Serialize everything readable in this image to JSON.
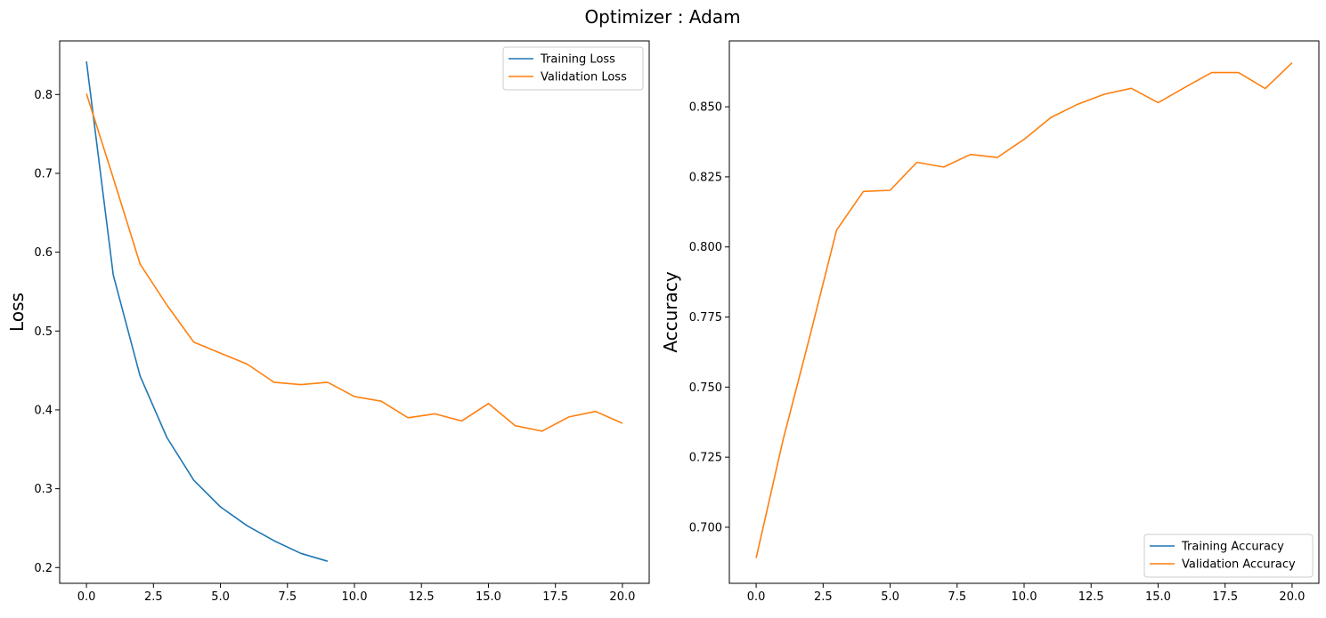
{
  "figure": {
    "suptitle": "Optimizer : Adam"
  },
  "chart_data": [
    {
      "type": "line",
      "title": "",
      "xlabel": "",
      "ylabel": "Loss",
      "xlim": [
        -1,
        21
      ],
      "ylim": [
        0.18,
        0.868
      ],
      "xticks": [
        0,
        2.5,
        5,
        7.5,
        10,
        12.5,
        15,
        17.5,
        20
      ],
      "xtick_labels": [
        "0.0",
        "2.5",
        "5.0",
        "7.5",
        "10.0",
        "12.5",
        "15.0",
        "17.5",
        "20.0"
      ],
      "yticks": [
        0.2,
        0.3,
        0.4,
        0.5,
        0.6,
        0.7,
        0.8
      ],
      "ytick_labels": [
        "0.2",
        "0.3",
        "0.4",
        "0.5",
        "0.6",
        "0.7",
        "0.8"
      ],
      "grid": false,
      "legend": "top-right",
      "series": [
        {
          "name": "Training Loss",
          "color": "#1f77b4",
          "x": [
            0,
            1,
            2,
            3,
            4,
            5,
            6,
            7,
            8,
            9
          ],
          "values": [
            0.842,
            0.571,
            0.443,
            0.365,
            0.311,
            0.277,
            0.253,
            0.234,
            0.218,
            0.208
          ]
        },
        {
          "name": "Validation Loss",
          "color": "#ff7f0e",
          "x": [
            0,
            1,
            2,
            3,
            4,
            5,
            6,
            7,
            8,
            9,
            10,
            11,
            12,
            13,
            14,
            15,
            16,
            17,
            18,
            19,
            20
          ],
          "values": [
            0.801,
            0.694,
            0.585,
            0.533,
            0.486,
            0.472,
            0.458,
            0.435,
            0.432,
            0.435,
            0.417,
            0.411,
            0.39,
            0.395,
            0.386,
            0.408,
            0.38,
            0.373,
            0.391,
            0.398,
            0.383
          ]
        }
      ]
    },
    {
      "type": "line",
      "title": "",
      "xlabel": "",
      "ylabel": "Accuracy",
      "xlim": [
        -1,
        21
      ],
      "ylim": [
        0.68,
        0.8735
      ],
      "xticks": [
        0,
        2.5,
        5,
        7.5,
        10,
        12.5,
        15,
        17.5,
        20
      ],
      "xtick_labels": [
        "0.0",
        "2.5",
        "5.0",
        "7.5",
        "10.0",
        "12.5",
        "15.0",
        "17.5",
        "20.0"
      ],
      "yticks": [
        0.7,
        0.725,
        0.75,
        0.775,
        0.8,
        0.825,
        0.85
      ],
      "ytick_labels": [
        "0.700",
        "0.725",
        "0.750",
        "0.775",
        "0.800",
        "0.825",
        "0.850"
      ],
      "grid": false,
      "legend": "bottom-right",
      "series": [
        {
          "name": "Training Accuracy",
          "color": "#1f77b4",
          "x": [],
          "values": []
        },
        {
          "name": "Validation Accuracy",
          "color": "#ff7f0e",
          "x": [
            0,
            1,
            2,
            3,
            4,
            5,
            6,
            7,
            8,
            9,
            10,
            11,
            12,
            13,
            14,
            15,
            16,
            17,
            18,
            19,
            20
          ],
          "values": [
            0.689,
            0.731,
            0.768,
            0.806,
            0.8198,
            0.8202,
            0.8302,
            0.8285,
            0.833,
            0.8319,
            0.8384,
            0.8462,
            0.8509,
            0.8545,
            0.8566,
            0.8515,
            0.8569,
            0.8622,
            0.8622,
            0.8565,
            0.8657
          ]
        }
      ]
    }
  ]
}
